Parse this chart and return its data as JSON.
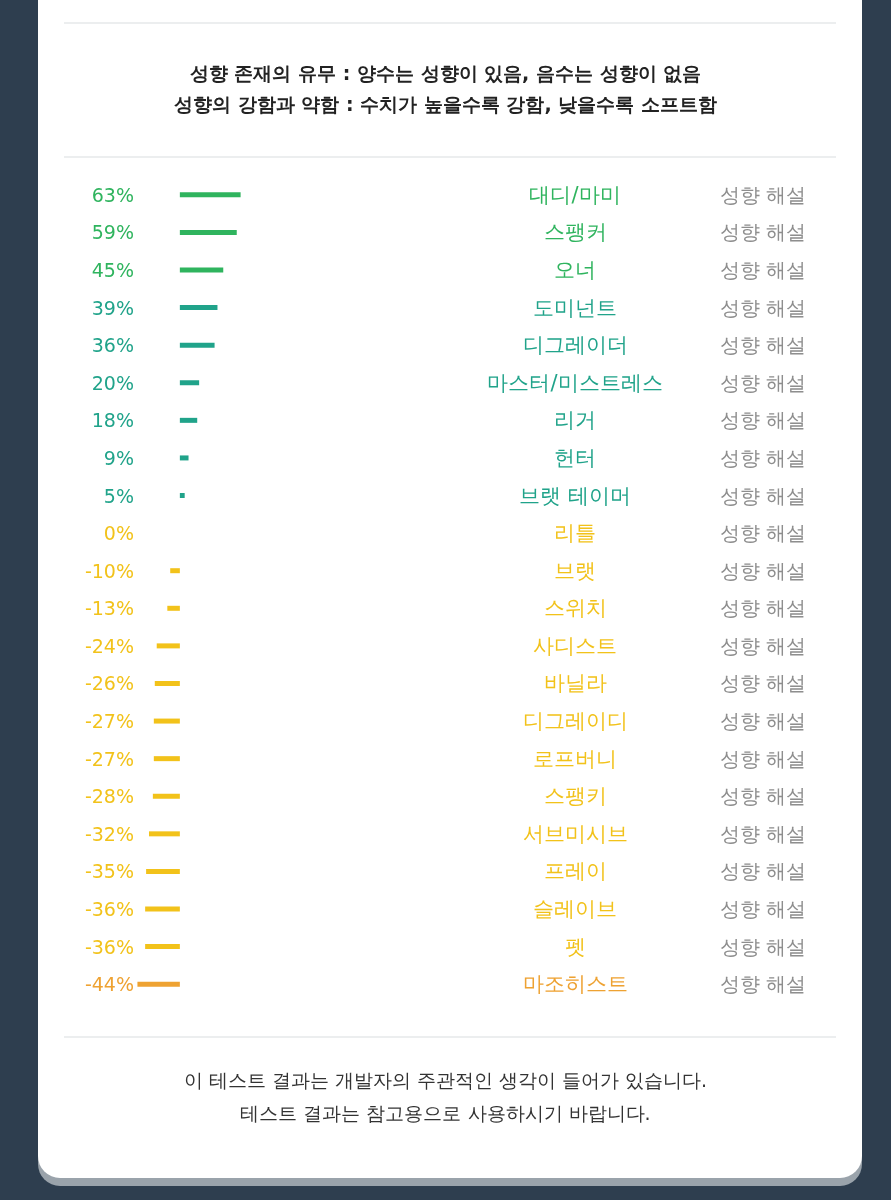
{
  "chart_data": {
    "type": "bar",
    "orientation": "horizontal",
    "title": "성향 존재의 유무 : 양수는 성향이 있음, 음수는 성향이 없음",
    "subtitle": "성향의 강함과 약함 : 수치가 높을수록 강함, 낮을수록 소프트함",
    "categories": [
      "대디/마미",
      "스팽커",
      "오너",
      "도미넌트",
      "디그레이더",
      "마스터/미스트레스",
      "리거",
      "헌터",
      "브랫 테이머",
      "리틀",
      "브랫",
      "스위치",
      "사디스트",
      "바닐라",
      "디그레이디",
      "로프버니",
      "스팽키",
      "서브미시브",
      "프레이",
      "슬레이브",
      "펫",
      "마조히스트"
    ],
    "values": [
      63,
      59,
      45,
      39,
      36,
      20,
      18,
      9,
      5,
      0,
      -10,
      -13,
      -24,
      -26,
      -27,
      -27,
      -28,
      -32,
      -35,
      -36,
      -36,
      -44
    ],
    "value_labels": [
      "63%",
      "59%",
      "45%",
      "39%",
      "36%",
      "20%",
      "18%",
      "9%",
      "5%",
      "0%",
      "-10%",
      "-13%",
      "-24%",
      "-26%",
      "-27%",
      "-27%",
      "-28%",
      "-32%",
      "-35%",
      "-36%",
      "-36%",
      "-44%"
    ],
    "colors": [
      "#2fb45e",
      "#2fb45e",
      "#2fb45e",
      "#20a38a",
      "#20a38a",
      "#20a38a",
      "#20a38a",
      "#20a38a",
      "#20a38a",
      "#f2c21a",
      "#f2c21a",
      "#f2c21a",
      "#f2c21a",
      "#f2c21a",
      "#f2c21a",
      "#f2c21a",
      "#f2c21a",
      "#f2c21a",
      "#f2c21a",
      "#f2c21a",
      "#f2c21a",
      "#eea232"
    ],
    "annotations": [
      "성향 해설",
      "성향 해설",
      "성향 해설",
      "성향 해설",
      "성향 해설",
      "성향 해설",
      "성향 해설",
      "성향 해설",
      "성향 해설",
      "성향 해설",
      "성향 해설",
      "성향 해설",
      "성향 해설",
      "성향 해설",
      "성향 해설",
      "성향 해설",
      "성향 해설",
      "성향 해설",
      "성향 해설",
      "성향 해설",
      "성향 해설",
      "성향 해설",
      "이 테스트 결과는 개발자의 주관적인 생각이 들어가 있습니다.",
      "테스트 결과는 참고용으로 사용하시기 바랍니다."
    ]
  }
}
